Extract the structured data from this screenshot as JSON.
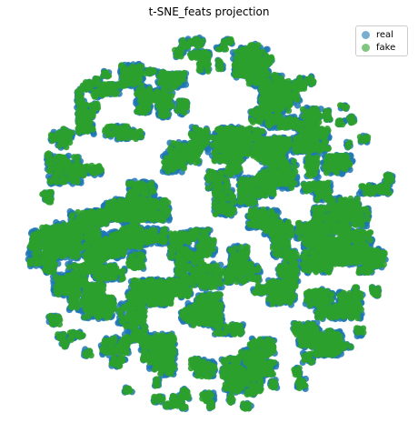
{
  "chart_data": {
    "type": "scatter",
    "title": "t-SNE_feats projection",
    "xlabel": "",
    "ylabel": "",
    "axes_visible": false,
    "grid": false,
    "legend_position": "top-right",
    "series": [
      {
        "name": "real",
        "color": "#1f77b4",
        "alpha": 0.5
      },
      {
        "name": "fake",
        "color": "#2ca02c",
        "alpha": 0.5
      }
    ],
    "description": "Tens of thousands of 2-D t-SNE points forming a roughly circular cloud of tight clusters; the green (fake) points almost fully overlap the blue (real) points."
  }
}
